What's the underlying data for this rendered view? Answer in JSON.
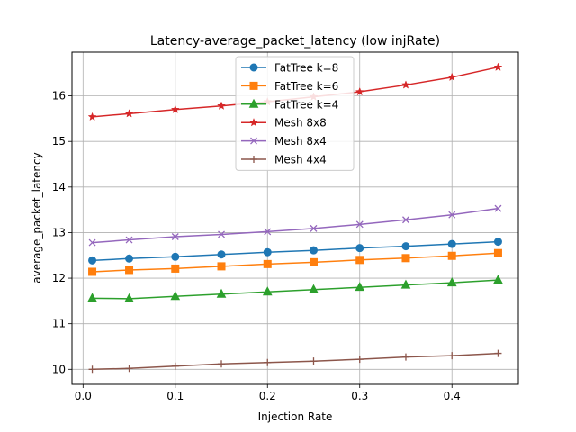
{
  "chart_data": {
    "type": "line",
    "title": "Latency-average_packet_latency (low injRate)",
    "xlabel": "Injection Rate",
    "ylabel": "average_packet_latency",
    "xlim": [
      -0.012,
      0.472
    ],
    "ylim": [
      9.67,
      16.96
    ],
    "xticks": [
      0.0,
      0.1,
      0.2,
      0.3,
      0.4
    ],
    "xtick_labels": [
      "0.0",
      "0.1",
      "0.2",
      "0.3",
      "0.4"
    ],
    "yticks": [
      10,
      11,
      12,
      13,
      14,
      15,
      16
    ],
    "ytick_labels": [
      "10",
      "11",
      "12",
      "13",
      "14",
      "15",
      "16"
    ],
    "grid": true,
    "legend_position": "top-center",
    "x": [
      0.01,
      0.05,
      0.1,
      0.15,
      0.2,
      0.25,
      0.3,
      0.35,
      0.4,
      0.45
    ],
    "series": [
      {
        "name": "FatTree k=8",
        "color": "#1f77b4",
        "marker": "circle",
        "values": [
          12.39,
          12.43,
          12.47,
          12.52,
          12.57,
          12.61,
          12.66,
          12.7,
          12.75,
          12.8
        ]
      },
      {
        "name": "FatTree k=6",
        "color": "#ff7f0e",
        "marker": "square",
        "values": [
          12.14,
          12.18,
          12.21,
          12.26,
          12.31,
          12.35,
          12.4,
          12.44,
          12.49,
          12.55
        ]
      },
      {
        "name": "FatTree k=4",
        "color": "#2ca02c",
        "marker": "triangle",
        "values": [
          11.56,
          11.55,
          11.6,
          11.65,
          11.7,
          11.75,
          11.8,
          11.85,
          11.9,
          11.96
        ]
      },
      {
        "name": "Mesh 8x8",
        "color": "#d62728",
        "marker": "star",
        "values": [
          15.54,
          15.61,
          15.7,
          15.78,
          15.87,
          15.98,
          16.09,
          16.24,
          16.41,
          16.63
        ]
      },
      {
        "name": "Mesh 8x4",
        "color": "#9467bd",
        "marker": "x",
        "values": [
          12.78,
          12.84,
          12.91,
          12.96,
          13.02,
          13.09,
          13.18,
          13.28,
          13.39,
          13.53
        ]
      },
      {
        "name": "Mesh 4x4",
        "color": "#8c564b",
        "marker": "plus",
        "values": [
          10.0,
          10.02,
          10.07,
          10.12,
          10.15,
          10.18,
          10.22,
          10.27,
          10.3,
          10.35
        ]
      }
    ]
  }
}
